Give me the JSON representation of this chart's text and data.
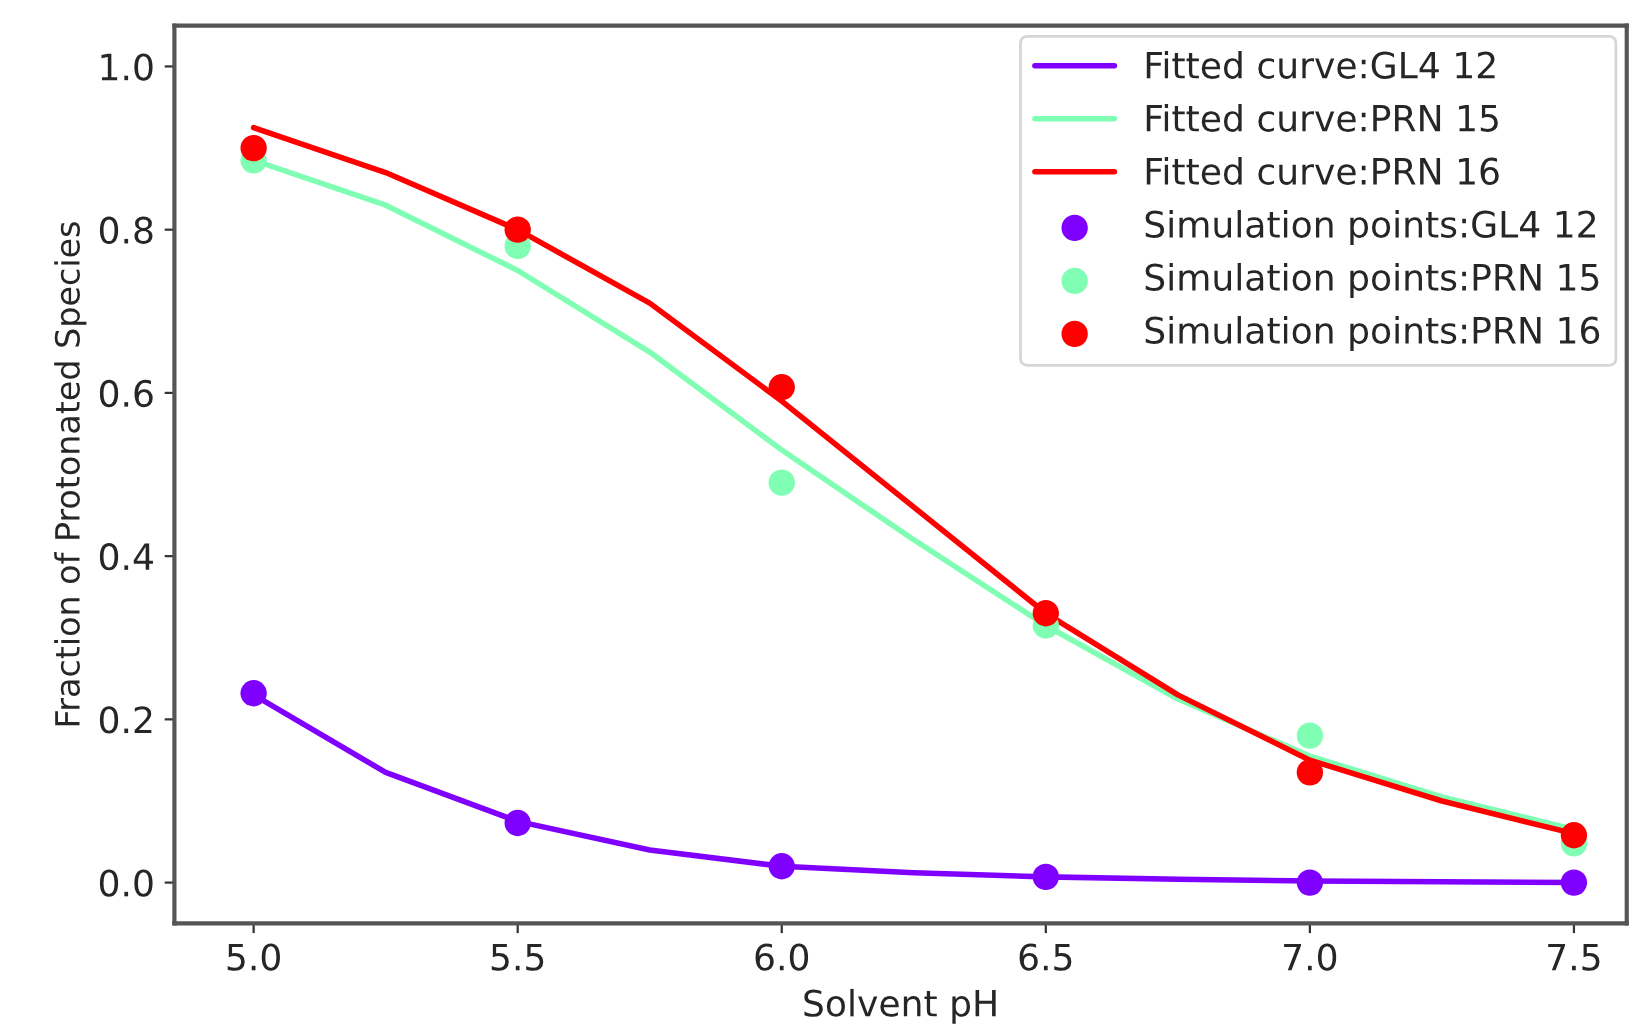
{
  "chart_data": {
    "type": "line",
    "xlabel": "Solvent pH",
    "ylabel": "Fraction of Protonated Species",
    "xlim": [
      4.85,
      7.6
    ],
    "xticks": [
      {
        "value": 5.0,
        "label": "5.0"
      },
      {
        "value": 5.5,
        "label": "5.5"
      },
      {
        "value": 6.0,
        "label": "6.0"
      },
      {
        "value": 6.5,
        "label": "6.5"
      },
      {
        "value": 7.0,
        "label": "7.0"
      },
      {
        "value": 7.5,
        "label": "7.5"
      }
    ],
    "ylim": [
      -0.05,
      1.05
    ],
    "yticks": [
      {
        "value": 0.0,
        "label": "0.0"
      },
      {
        "value": 0.2,
        "label": "0.2"
      },
      {
        "value": 0.4,
        "label": "0.4"
      },
      {
        "value": 0.6,
        "label": "0.6"
      },
      {
        "value": 0.8,
        "label": "0.8"
      },
      {
        "value": 1.0,
        "label": "1.0"
      }
    ],
    "grid": false,
    "legend": "top right",
    "series": [
      {
        "name": "Fitted curve:GL4 12",
        "color": "#8000ff",
        "marker": "none",
        "x": [
          5.0,
          5.25,
          5.5,
          5.75,
          6.0,
          6.25,
          6.5,
          6.75,
          7.0,
          7.25,
          7.5
        ],
        "values": [
          0.23,
          0.135,
          0.075,
          0.04,
          0.02,
          0.012,
          0.007,
          0.004,
          0.002,
          0.001,
          0.0
        ]
      },
      {
        "name": "Fitted curve:PRN 15",
        "color": "#80ffb4",
        "marker": "none",
        "x": [
          5.0,
          5.25,
          5.5,
          5.75,
          6.0,
          6.25,
          6.5,
          6.75,
          7.0,
          7.25,
          7.5
        ],
        "values": [
          0.885,
          0.83,
          0.75,
          0.65,
          0.53,
          0.42,
          0.315,
          0.225,
          0.155,
          0.105,
          0.065
        ]
      },
      {
        "name": "Fitted curve:PRN 16",
        "color": "#ff0000",
        "marker": "none",
        "x": [
          5.0,
          5.25,
          5.5,
          5.75,
          6.0,
          6.25,
          6.5,
          6.75,
          7.0,
          7.25,
          7.5
        ],
        "values": [
          0.925,
          0.87,
          0.8,
          0.71,
          0.59,
          0.46,
          0.33,
          0.23,
          0.15,
          0.1,
          0.06
        ]
      },
      {
        "name": "Simulation points:GL4 12",
        "type": "scatter",
        "color": "#8000ff",
        "marker": "circle",
        "x": [
          5.0,
          5.5,
          6.0,
          6.5,
          7.0,
          7.5
        ],
        "values": [
          0.232,
          0.073,
          0.02,
          0.007,
          0.0,
          0.0
        ]
      },
      {
        "name": "Simulation points:PRN 15",
        "type": "scatter",
        "color": "#80ffb4",
        "marker": "circle",
        "x": [
          5.0,
          5.5,
          6.0,
          6.5,
          7.0,
          7.5
        ],
        "values": [
          0.885,
          0.78,
          0.49,
          0.315,
          0.18,
          0.048
        ]
      },
      {
        "name": "Simulation points:PRN 16",
        "type": "scatter",
        "color": "#ff0000",
        "marker": "circle",
        "x": [
          5.0,
          5.5,
          6.0,
          6.5,
          7.0,
          7.5
        ],
        "values": [
          0.9,
          0.8,
          0.607,
          0.33,
          0.135,
          0.058
        ]
      }
    ]
  }
}
